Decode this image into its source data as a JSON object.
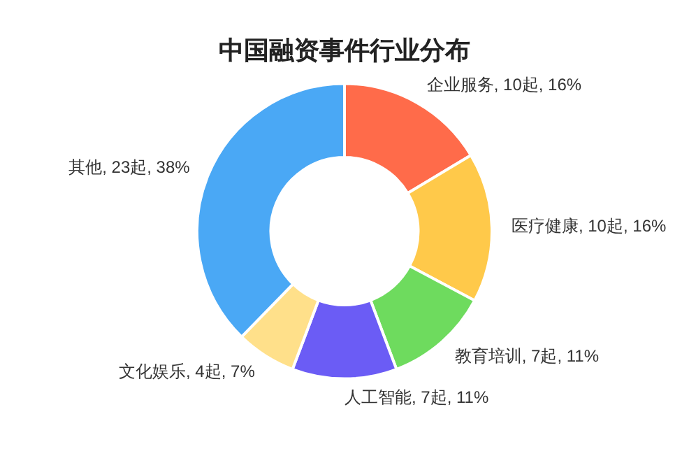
{
  "chart_data": {
    "type": "donut",
    "title": "中国融资事件行业分布",
    "categories": [
      "企业服务",
      "医疗健康",
      "教育培训",
      "人工智能",
      "文化娱乐",
      "其他"
    ],
    "values": [
      10,
      10,
      7,
      7,
      4,
      23
    ],
    "colors": [
      "#ff6b4a",
      "#ffc94a",
      "#6edb5e",
      "#6b5cf5",
      "#ffe08a",
      "#4aa8f5"
    ],
    "value_labels": [
      "10起, 16%",
      "10起, 16%",
      "7起, 11%",
      "7起, 11%",
      "4起, 7%",
      "23起, 38%"
    ],
    "legend": false
  }
}
